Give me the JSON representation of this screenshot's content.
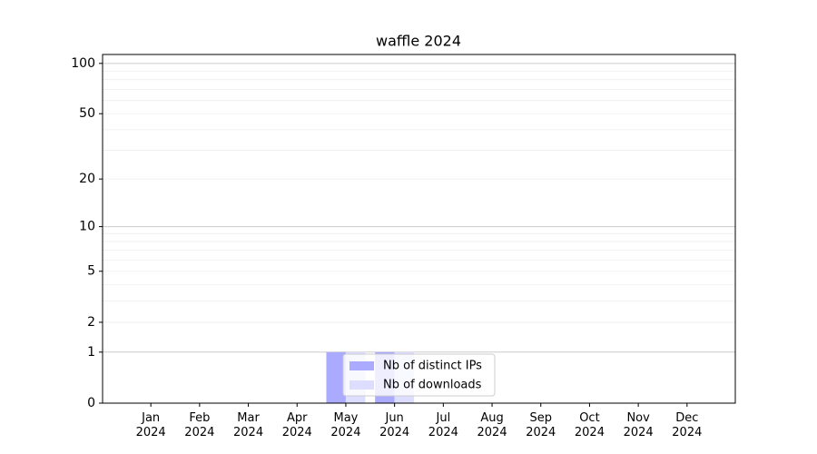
{
  "chart_data": {
    "type": "bar",
    "title": "waffle 2024",
    "categories": [
      "Jan\n2024",
      "Feb\n2024",
      "Mar\n2024",
      "Apr\n2024",
      "May\n2024",
      "Jun\n2024",
      "Jul\n2024",
      "Aug\n2024",
      "Sep\n2024",
      "Oct\n2024",
      "Nov\n2024",
      "Dec\n2024"
    ],
    "series": [
      {
        "name": "Nb of distinct IPs",
        "color": "#aaaaff",
        "values": [
          0,
          0,
          0,
          0,
          1,
          1,
          0,
          0,
          0,
          0,
          0,
          0
        ]
      },
      {
        "name": "Nb of downloads",
        "color": "#ddddff",
        "values": [
          0,
          0,
          0,
          0,
          1,
          1,
          0,
          0,
          0,
          0,
          0,
          0
        ]
      }
    ],
    "yscale": "log1p",
    "ylim": [
      0,
      113
    ],
    "yticks": [
      0,
      1,
      2,
      5,
      10,
      20,
      50,
      100
    ],
    "grid_major": [
      1,
      10,
      100
    ],
    "grid_minor": [
      2,
      3,
      4,
      5,
      6,
      7,
      8,
      9,
      20,
      30,
      40,
      50,
      60,
      70,
      80,
      90
    ],
    "legend": "lower center"
  }
}
